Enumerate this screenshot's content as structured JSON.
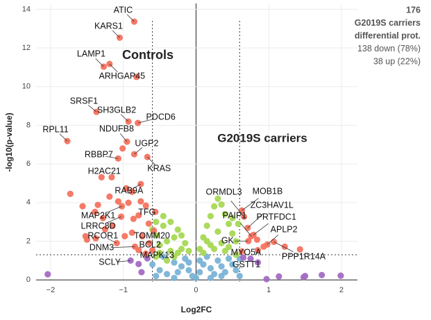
{
  "chart_data": {
    "type": "scatter",
    "xlabel": "Log2FC",
    "ylabel": "-log10(p-value)",
    "xlim": [
      -2.2,
      2.22
    ],
    "ylim": [
      -0.1,
      14.3
    ],
    "xticks": [
      {
        "value": -2,
        "label": "−2"
      },
      {
        "value": -1,
        "label": "−1"
      },
      0,
      1,
      2
    ],
    "yticks": [
      0,
      2,
      4,
      6,
      8,
      10,
      12,
      14
    ],
    "grid": true,
    "thresholds": {
      "x": [
        -0.6,
        0.6
      ],
      "y": 1.3
    },
    "group_titles": [
      "Controls",
      "G2019S carriers"
    ],
    "summary": [
      "176",
      "G2019S carriers",
      "differential prot.",
      "138 down (78%)",
      "38 up (22%)"
    ],
    "series": [
      {
        "color": "#7ab3d6",
        "x": [
          -0.6,
          -0.5,
          -0.4,
          -0.3,
          -0.25,
          -0.2,
          -0.15,
          -0.1,
          -0.05,
          0,
          0.05,
          0.1,
          0.15,
          0.2,
          0.25,
          0.3,
          0.35,
          0.4,
          0.45,
          0.5,
          0.55,
          0.6,
          -0.45,
          0.05,
          -0.1,
          0.2,
          -0.3,
          0.35,
          -0.55,
          0.6
        ],
        "values": [
          0.8,
          0.5,
          0.3,
          0.9,
          0.4,
          0.7,
          1.1,
          0.5,
          0.2,
          0.1,
          0.4,
          0.8,
          1.2,
          0.6,
          0.3,
          1.0,
          0.7,
          0.4,
          1.1,
          0.8,
          0.5,
          0.2,
          1.2,
          1.0,
          0.9,
          0.1,
          0.1,
          0.2,
          0.2,
          1.1
        ]
      },
      {
        "color": "#a6d854",
        "x": [
          -0.55,
          -0.45,
          -0.5,
          -0.4,
          -0.35,
          -0.3,
          -0.25,
          -0.2,
          -0.15,
          -0.45,
          -0.55,
          -0.6,
          -0.1,
          -0.3,
          -0.5,
          -0.35,
          -0.2,
          -0.4,
          -0.55,
          -0.25,
          0.05,
          0.1,
          0.15,
          0.2,
          0.25,
          0.3,
          0.35,
          0.4,
          0.45,
          0.5,
          0.55,
          0.3,
          0.2,
          0.4,
          0.1,
          0.35,
          0.25,
          0.5,
          0.45,
          0.15,
          0.55,
          0.58
        ],
        "values": [
          2.3,
          2.8,
          1.8,
          2.0,
          1.5,
          2.2,
          2.6,
          1.6,
          1.9,
          3.3,
          3.0,
          2.6,
          1.5,
          1.2,
          1.4,
          3.0,
          2.3,
          1.0,
          1.2,
          1.4,
          1.6,
          2.2,
          2.8,
          3.3,
          3.8,
          4.2,
          3.9,
          3.4,
          2.9,
          2.4,
          2.0,
          2.5,
          1.8,
          1.5,
          1.4,
          1.9,
          1.6,
          3.2,
          1.7,
          2.0,
          1.3,
          2.9
        ]
      },
      {
        "color": "#a36cc4",
        "x": [
          -0.9,
          -0.67,
          0.75,
          -2.04,
          0.97,
          1.14,
          1.73,
          1.99,
          1.48,
          -0.79,
          0.65,
          0.85,
          -0.75,
          1.5
        ],
        "values": [
          1.0,
          1.11,
          1.1,
          0.29,
          0.04,
          0.18,
          0.25,
          0.22,
          0.14,
          0.82,
          1.15,
          0.9,
          0.4,
          0.2
        ],
        "labels": [
          "SCLY",
          "MAPK13",
          "GSTT1",
          null,
          null,
          null,
          null,
          null,
          null,
          null,
          null,
          null,
          null,
          null
        ]
      },
      {
        "color": "#f4735f",
        "x": [
          -0.85,
          -1.05,
          -1.27,
          -1.19,
          -0.82,
          -1.37,
          -0.93,
          -0.8,
          -1.77,
          -0.95,
          -0.85,
          -1.01,
          -1.07,
          -0.67,
          -1.3,
          -1.16,
          -0.76,
          -1.02,
          -0.79,
          -1.03,
          -1.09,
          -0.74,
          -0.84,
          -0.69,
          -0.96,
          -0.88,
          -1.73,
          -1.56,
          -1.35,
          -1.19,
          -1.07,
          -0.93,
          -0.76,
          -0.69,
          -1.39,
          -1.52,
          -1.28,
          -1.15,
          -0.86,
          -0.65,
          -0.56,
          -1.5,
          -1.38,
          -1.25,
          -0.98,
          -0.88,
          -0.64,
          -0.58,
          -0.79,
          -0.6
        ],
        "values": [
          13.36,
          12.53,
          11.03,
          11.17,
          10.5,
          8.69,
          8.19,
          8.12,
          7.18,
          7.15,
          6.5,
          6.8,
          6.28,
          6.36,
          5.31,
          5.31,
          4.96,
          3.81,
          3.34,
          3.27,
          1.9,
          2.26,
          1.72,
          1.36,
          4.74,
          4.56,
          4.45,
          3.81,
          3.88,
          4.31,
          4.06,
          3.99,
          4.06,
          3.84,
          3.52,
          2.26,
          3.2,
          2.8,
          3.16,
          2.91,
          3.52,
          2.08,
          2.15,
          2.62,
          2.26,
          2.44,
          1.9,
          2.55,
          1.54,
          1.54
        ],
        "labels": [
          "ATIC",
          "KARS1",
          "LAMP1",
          "ARHGAP45",
          null,
          "SRSF1",
          "SH3GLB2",
          "PDCD6",
          "RPL11",
          "NDUFB8",
          "UGP2",
          null,
          "RBBP7",
          "KRAS",
          "H2AC21",
          null,
          "RAB9A",
          "MAP2K1",
          "TFG",
          "LRRC8D",
          "RCOR1",
          "TOMM20",
          "DNM3",
          "BCL2",
          null,
          null,
          null,
          null,
          null,
          null,
          null,
          null,
          null,
          null,
          null,
          null,
          null,
          null,
          null,
          null,
          null,
          null,
          null,
          null,
          null,
          null,
          null,
          null,
          null,
          null
        ]
      },
      {
        "color": "#f4735f",
        "x": [
          0.63,
          0.66,
          0.71,
          0.76,
          0.79,
          0.98,
          0.72,
          0.85,
          1.07,
          0.84,
          0.93,
          1.22,
          1.43,
          0.63
        ],
        "values": [
          3.59,
          3.27,
          2.69,
          2.26,
          2.33,
          1.83,
          2.01,
          1.54,
          1.97,
          2.08,
          1.72,
          1.72,
          1.58,
          1.47
        ],
        "labels": [
          "MOB1B",
          "ORMDL3",
          "ZC3HAV1L",
          "PAIP1",
          "PRTFDC1",
          "APLP2",
          "GK",
          "MYO5A",
          "PPP1R14A",
          null,
          null,
          null,
          null,
          null
        ]
      }
    ]
  }
}
